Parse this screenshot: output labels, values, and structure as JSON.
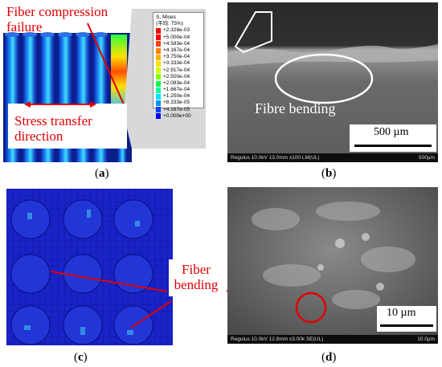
{
  "panel_a": {
    "annotation_failure": "Fiber compression failure",
    "annotation_stress": "Stress transfer direction",
    "legend": {
      "title": "S, Mises",
      "subtitle": "(平均: 75%)",
      "entries": [
        {
          "value": "+2.328e-03",
          "color": "#ff0000"
        },
        {
          "value": "+5.000e-04",
          "color": "#ff0000"
        },
        {
          "value": "+4.583e-04",
          "color": "#ff4000"
        },
        {
          "value": "+4.167e-04",
          "color": "#ff8000"
        },
        {
          "value": "+3.750e-04",
          "color": "#ffb000"
        },
        {
          "value": "+3.333e-04",
          "color": "#ffe000"
        },
        {
          "value": "+2.917e-04",
          "color": "#d0ff00"
        },
        {
          "value": "+2.500e-04",
          "color": "#80ff00"
        },
        {
          "value": "+2.083e-04",
          "color": "#00ff40"
        },
        {
          "value": "+1.667e-04",
          "color": "#00ffa0"
        },
        {
          "value": "+1.250e-04",
          "color": "#00e0ff"
        },
        {
          "value": "+8.333e-05",
          "color": "#0090ff"
        },
        {
          "value": "+4.167e-05",
          "color": "#0040ff"
        },
        {
          "value": "+0.000e+00",
          "color": "#0000ff"
        }
      ]
    },
    "caption_letter": "a"
  },
  "panel_b": {
    "annotation": "Fibre bending",
    "scale_label": "500 µm",
    "info_left": "Regulus 10.0kV 13.0mm x100 LM(UL)",
    "info_right": "500µm",
    "caption_letter": "b"
  },
  "panel_c": {
    "annotation": "Fiber bending",
    "caption_letter": "c"
  },
  "panel_d": {
    "scale_label": "10 µm",
    "info_left": "Regulus 10.0kV 12.8mm x3.00k SE(UL)",
    "info_right": "10.0µm",
    "caption_letter": "d"
  },
  "colors": {
    "annotation_red": "#e00000",
    "fem_blue": "#1a22c8"
  }
}
